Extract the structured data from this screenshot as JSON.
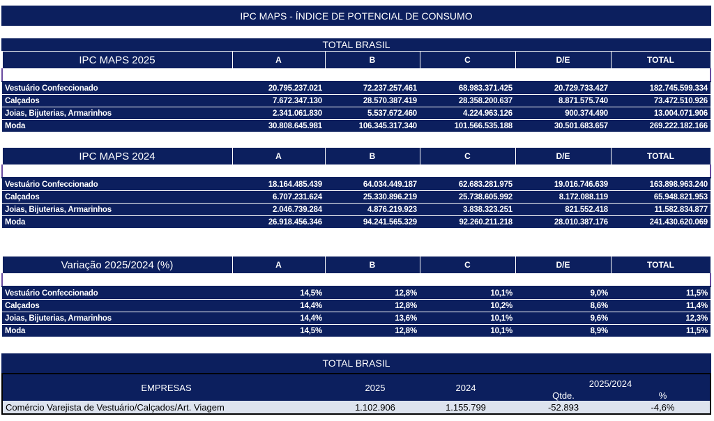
{
  "title": "IPC MAPS - ÍNDICE DE POTENCIAL DE CONSUMO",
  "total_brasil": "TOTAL BRASIL",
  "columns": [
    "A",
    "B",
    "C",
    "D/E",
    "TOTAL"
  ],
  "tables": [
    {
      "label": "IPC MAPS 2025",
      "rows": [
        [
          "Vestuário Confeccionado",
          "20.795.237.021",
          "72.237.257.461",
          "68.983.371.425",
          "20.729.733.427",
          "182.745.599.334"
        ],
        [
          "Calçados",
          "7.672.347.130",
          "28.570.387.419",
          "28.358.200.637",
          "8.871.575.740",
          "73.472.510.926"
        ],
        [
          "Joias, Bijuterias, Armarinhos",
          "2.341.061.830",
          "5.537.672.460",
          "4.224.963.126",
          "900.374.490",
          "13.004.071.906"
        ],
        [
          "Moda",
          "30.808.645.981",
          "106.345.317.340",
          "101.566.535.188",
          "30.501.683.657",
          "269.222.182.166"
        ]
      ]
    },
    {
      "label": "IPC MAPS 2024",
      "rows": [
        [
          "Vestuário Confeccionado",
          "18.164.485.439",
          "64.034.449.187",
          "62.683.281.975",
          "19.016.746.639",
          "163.898.963.240"
        ],
        [
          "Calçados",
          "6.707.231.624",
          "25.330.896.219",
          "25.738.605.992",
          "8.172.088.119",
          "65.948.821.953"
        ],
        [
          "Joias, Bijuterias, Armarinhos",
          "2.046.739.284",
          "4.876.219.923",
          "3.838.323.251",
          "821.552.418",
          "11.582.834.877"
        ],
        [
          "Moda",
          "26.918.456.346",
          "94.241.565.329",
          "92.260.211.218",
          "28.010.387.176",
          "241.430.620.069"
        ]
      ]
    },
    {
      "label": "Variação 2025/2024 (%)",
      "rows": [
        [
          "Vestuário Confeccionado",
          "14,5%",
          "12,8%",
          "10,1%",
          "9,0%",
          "11,5%"
        ],
        [
          "Calçados",
          "14,4%",
          "12,8%",
          "10,2%",
          "8,6%",
          "11,4%"
        ],
        [
          "Joias, Bijuterias, Armarinhos",
          "14,4%",
          "13,6%",
          "10,1%",
          "9,6%",
          "12,3%"
        ],
        [
          "Moda",
          "14,5%",
          "12,8%",
          "10,1%",
          "8,9%",
          "11,5%"
        ]
      ]
    }
  ],
  "empresas": {
    "header": "EMPRESAS",
    "y2025": "2025",
    "y2024": "2024",
    "var": "2025/2024",
    "qtde": "Qtde.",
    "pct": "%",
    "row": {
      "label": "Comércio Varejista de Vestuário/Calçados/Art. Viagem",
      "v2025": "1.102.906",
      "v2024": "1.155.799",
      "qtde": "-52.893",
      "pct": "-4,6%"
    }
  }
}
